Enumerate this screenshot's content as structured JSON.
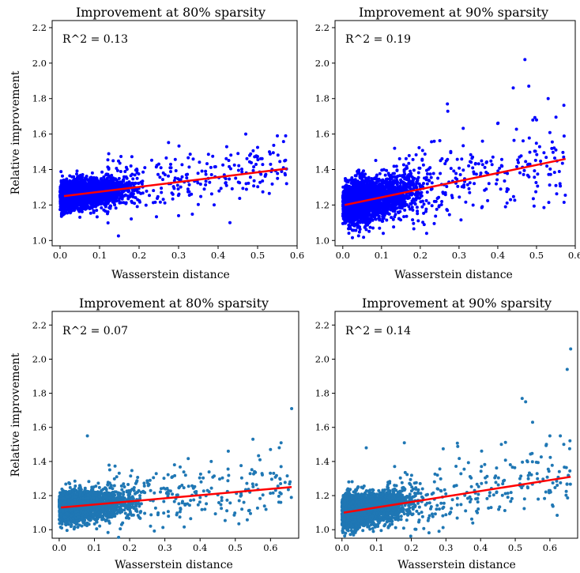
{
  "figure": {
    "ylabel": "Relative improvement"
  },
  "chart_data": [
    {
      "type": "scatter",
      "title": "Improvement at 80% sparsity",
      "annotation": "R^2 = 0.13",
      "xlabel": "Wasserstein distance",
      "ylabel": "Relative improvement",
      "xlim": [
        -0.02,
        0.6
      ],
      "ylim": [
        0.97,
        2.24
      ],
      "xticks": [
        "0.0",
        "0.1",
        "0.2",
        "0.3",
        "0.4",
        "0.5",
        "0.6"
      ],
      "yticks": [
        "1.0",
        "1.2",
        "1.4",
        "1.6",
        "1.8",
        "2.0",
        "2.2"
      ],
      "point_color": "#0000ff",
      "fit_color": "#ff0000",
      "fit_line": {
        "x": [
          0.01,
          0.575
        ],
        "y": [
          1.25,
          1.405
        ]
      },
      "cloud": {
        "x_range": [
          0.0,
          0.2
        ],
        "y_range": [
          1.15,
          1.38
        ]
      },
      "outliers": {
        "x": [
          0.47,
          0.53,
          0.55,
          0.43,
          0.3,
          0.57,
          0.48
        ],
        "y": [
          1.6,
          1.5,
          1.59,
          1.1,
          1.14,
          1.37,
          1.48
        ]
      },
      "grid": false
    },
    {
      "type": "scatter",
      "title": "Improvement at 90% sparsity",
      "annotation": "R^2 = 0.19",
      "xlabel": "Wasserstein distance",
      "ylabel": "",
      "xlim": [
        -0.02,
        0.6
      ],
      "ylim": [
        0.97,
        2.24
      ],
      "xticks": [
        "0.0",
        "0.1",
        "0.2",
        "0.3",
        "0.4",
        "0.5",
        "0.6"
      ],
      "yticks": [
        "1.0",
        "1.2",
        "1.4",
        "1.6",
        "1.8",
        "2.0",
        "2.2"
      ],
      "point_color": "#0000ff",
      "fit_color": "#ff0000",
      "fit_line": {
        "x": [
          0.005,
          0.575
        ],
        "y": [
          1.2,
          1.46
        ]
      },
      "cloud": {
        "x_range": [
          0.0,
          0.22
        ],
        "y_range": [
          1.08,
          1.42
        ]
      },
      "outliers": {
        "x": [
          0.47,
          0.44,
          0.48,
          0.53,
          0.27,
          0.5,
          0.55,
          0.4,
          0.57,
          0.42,
          0.55
        ],
        "y": [
          2.02,
          1.86,
          1.87,
          1.8,
          1.77,
          1.68,
          1.31,
          1.66,
          1.47,
          1.19,
          1.51
        ]
      },
      "grid": false
    },
    {
      "type": "scatter",
      "title": "Improvement at 80% sparsity",
      "annotation": "R^2 = 0.07",
      "xlabel": "Wasserstein distance",
      "ylabel": "Relative improvement",
      "xlim": [
        -0.02,
        0.68
      ],
      "ylim": [
        0.95,
        2.28
      ],
      "xticks": [
        "0.0",
        "0.1",
        "0.2",
        "0.3",
        "0.4",
        "0.5",
        "0.6"
      ],
      "yticks": [
        "1.0",
        "1.2",
        "1.4",
        "1.6",
        "1.8",
        "2.0",
        "2.2"
      ],
      "point_color": "#1f77b4",
      "fit_color": "#ff0000",
      "fit_line": {
        "x": [
          0.005,
          0.66
        ],
        "y": [
          1.13,
          1.25
        ]
      },
      "cloud": {
        "x_range": [
          0.0,
          0.22
        ],
        "y_range": [
          1.05,
          1.3
        ]
      },
      "outliers": {
        "x": [
          0.66,
          0.08,
          0.63,
          0.55,
          0.6,
          0.63,
          0.48,
          0.57
        ],
        "y": [
          1.71,
          1.55,
          1.51,
          1.53,
          1.47,
          1.37,
          1.46,
          1.41
        ]
      },
      "grid": false
    },
    {
      "type": "scatter",
      "title": "Improvement at 90% sparsity",
      "annotation": "R^2 = 0.14",
      "xlabel": "Wasserstein distance",
      "ylabel": "",
      "xlim": [
        -0.02,
        0.68
      ],
      "ylim": [
        0.95,
        2.28
      ],
      "xticks": [
        "0.0",
        "0.1",
        "0.2",
        "0.3",
        "0.4",
        "0.5",
        "0.6"
      ],
      "yticks": [
        "1.0",
        "1.2",
        "1.4",
        "1.6",
        "1.8",
        "2.0",
        "2.2"
      ],
      "point_color": "#1f77b4",
      "fit_color": "#ff0000",
      "fit_line": {
        "x": [
          0.005,
          0.66
        ],
        "y": [
          1.1,
          1.31
        ]
      },
      "cloud": {
        "x_range": [
          0.0,
          0.22
        ],
        "y_range": [
          1.05,
          1.33
        ]
      },
      "outliers": {
        "x": [
          0.66,
          0.65,
          0.52,
          0.53,
          0.55,
          0.6,
          0.63,
          0.64,
          0.59,
          0.46,
          0.07,
          0.18
        ],
        "y": [
          2.06,
          1.94,
          1.77,
          1.75,
          1.63,
          1.55,
          1.55,
          1.5,
          1.5,
          1.5,
          1.48,
          1.51
        ]
      },
      "grid": false
    }
  ]
}
